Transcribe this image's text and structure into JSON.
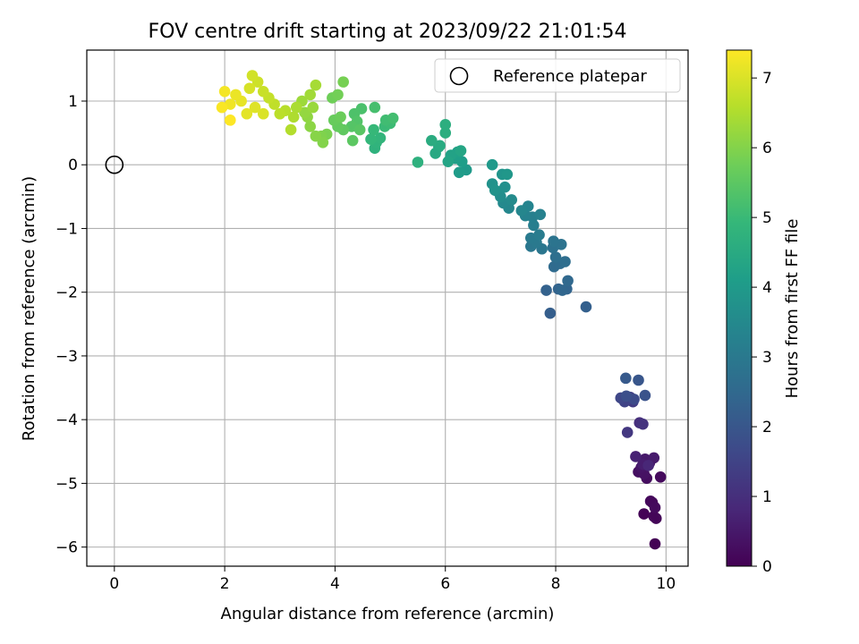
{
  "chart_data": {
    "type": "scatter",
    "title": "FOV centre drift starting at 2023/09/22 21:01:54",
    "xlabel": "Angular distance from reference (arcmin)",
    "ylabel": "Rotation from reference (arcmin)",
    "xlim": [
      -0.5,
      10.4
    ],
    "ylim": [
      -6.3,
      1.8
    ],
    "x_ticks": [
      0,
      2,
      4,
      6,
      8,
      10
    ],
    "y_ticks": [
      1,
      0,
      -1,
      -2,
      -3,
      -4,
      -5,
      -6
    ],
    "grid": true,
    "legend": {
      "position": "top-right",
      "label": "Reference platepar"
    },
    "reference_point": {
      "x": 0,
      "y": 0
    },
    "colorbar": {
      "label": "Hours from first FF file",
      "range": [
        0,
        7.4
      ],
      "ticks": [
        0,
        1,
        2,
        3,
        4,
        5,
        6,
        7
      ],
      "colormap": [
        "#440154",
        "#482878",
        "#3e4989",
        "#31688e",
        "#26828e",
        "#1f9e89",
        "#35b779",
        "#6ece58",
        "#b5de2b",
        "#fde725"
      ]
    },
    "points": [
      [
        9.8,
        -5.95,
        0.02
      ],
      [
        9.6,
        -5.48,
        0.05
      ],
      [
        9.82,
        -5.55,
        0.08
      ],
      [
        9.78,
        -5.52,
        0.1
      ],
      [
        9.75,
        -5.3,
        0.12
      ],
      [
        9.72,
        -5.28,
        0.15
      ],
      [
        9.8,
        -5.38,
        0.18
      ],
      [
        9.9,
        -4.9,
        0.2
      ],
      [
        9.65,
        -4.92,
        0.25
      ],
      [
        9.5,
        -4.82,
        0.3
      ],
      [
        9.6,
        -4.85,
        0.35
      ],
      [
        9.55,
        -4.75,
        0.4
      ],
      [
        9.7,
        -4.68,
        0.45
      ],
      [
        9.62,
        -4.62,
        0.5
      ],
      [
        9.78,
        -4.6,
        0.55
      ],
      [
        9.58,
        -4.7,
        0.6
      ],
      [
        9.45,
        -4.58,
        0.7
      ],
      [
        9.68,
        -4.72,
        0.8
      ],
      [
        9.52,
        -4.05,
        1.0
      ],
      [
        9.58,
        -4.07,
        1.1
      ],
      [
        9.3,
        -4.2,
        1.2
      ],
      [
        9.4,
        -3.72,
        1.3
      ],
      [
        9.35,
        -3.65,
        1.4
      ],
      [
        9.25,
        -3.72,
        1.5
      ],
      [
        9.18,
        -3.66,
        1.6
      ],
      [
        9.42,
        -3.68,
        1.7
      ],
      [
        9.28,
        -3.63,
        1.8
      ],
      [
        9.62,
        -3.62,
        1.9
      ],
      [
        9.5,
        -3.38,
        2.0
      ],
      [
        9.27,
        -3.35,
        2.1
      ],
      [
        7.9,
        -2.33,
        2.2
      ],
      [
        8.55,
        -2.23,
        2.25
      ],
      [
        7.83,
        -1.97,
        2.3
      ],
      [
        8.05,
        -1.95,
        2.35
      ],
      [
        8.2,
        -1.95,
        2.4
      ],
      [
        8.12,
        -1.97,
        2.45
      ],
      [
        8.22,
        -1.82,
        2.5
      ],
      [
        7.97,
        -1.6,
        2.55
      ],
      [
        8.08,
        -1.55,
        2.6
      ],
      [
        8.17,
        -1.52,
        2.65
      ],
      [
        8.0,
        -1.45,
        2.7
      ],
      [
        7.95,
        -1.3,
        2.75
      ],
      [
        8.1,
        -1.25,
        2.8
      ],
      [
        7.96,
        -1.2,
        2.85
      ],
      [
        7.75,
        -1.32,
        2.9
      ],
      [
        7.55,
        -1.28,
        2.95
      ],
      [
        7.65,
        -1.22,
        3.0
      ],
      [
        7.55,
        -1.15,
        3.05
      ],
      [
        7.7,
        -1.1,
        3.1
      ],
      [
        7.6,
        -0.95,
        3.15
      ],
      [
        7.58,
        -0.82,
        3.2
      ],
      [
        7.72,
        -0.78,
        3.25
      ],
      [
        7.45,
        -0.8,
        3.3
      ],
      [
        7.5,
        -0.65,
        3.35
      ],
      [
        7.38,
        -0.72,
        3.4
      ],
      [
        7.15,
        -0.68,
        3.45
      ],
      [
        7.05,
        -0.6,
        3.5
      ],
      [
        7.2,
        -0.55,
        3.55
      ],
      [
        7.0,
        -0.5,
        3.6
      ],
      [
        6.95,
        -0.42,
        3.65
      ],
      [
        7.08,
        -0.35,
        3.7
      ],
      [
        6.85,
        -0.3,
        3.75
      ],
      [
        6.9,
        -0.4,
        3.8
      ],
      [
        7.03,
        -0.15,
        3.85
      ],
      [
        7.12,
        -0.15,
        3.9
      ],
      [
        6.85,
        0.0,
        3.95
      ],
      [
        6.38,
        -0.08,
        4.0
      ],
      [
        6.25,
        -0.12,
        4.05
      ],
      [
        6.3,
        0.05,
        4.1
      ],
      [
        6.18,
        0.1,
        4.15
      ],
      [
        6.22,
        0.2,
        4.2
      ],
      [
        6.1,
        0.15,
        4.25
      ],
      [
        6.05,
        0.05,
        4.3
      ],
      [
        6.28,
        0.22,
        4.35
      ],
      [
        5.88,
        0.28,
        4.4
      ],
      [
        5.82,
        0.18,
        4.45
      ],
      [
        5.9,
        0.3,
        4.5
      ],
      [
        5.75,
        0.38,
        4.55
      ],
      [
        6.0,
        0.5,
        4.6
      ],
      [
        6.0,
        0.63,
        4.65
      ],
      [
        5.5,
        0.04,
        4.7
      ],
      [
        4.72,
        0.26,
        4.75
      ],
      [
        4.75,
        0.35,
        4.8
      ],
      [
        4.82,
        0.42,
        4.85
      ],
      [
        4.65,
        0.4,
        4.9
      ],
      [
        4.7,
        0.55,
        4.95
      ],
      [
        4.9,
        0.6,
        5.0
      ],
      [
        5.0,
        0.65,
        5.05
      ],
      [
        4.92,
        0.7,
        5.1
      ],
      [
        5.05,
        0.73,
        5.15
      ],
      [
        4.72,
        0.9,
        5.2
      ],
      [
        4.48,
        0.88,
        5.25
      ],
      [
        4.35,
        0.8,
        5.3
      ],
      [
        4.4,
        0.68,
        5.35
      ],
      [
        4.3,
        0.6,
        5.4
      ],
      [
        4.45,
        0.55,
        5.45
      ],
      [
        4.32,
        0.38,
        5.5
      ],
      [
        4.15,
        0.55,
        5.55
      ],
      [
        4.05,
        0.6,
        5.6
      ],
      [
        3.98,
        0.7,
        5.65
      ],
      [
        4.1,
        0.75,
        5.7
      ],
      [
        3.95,
        1.05,
        5.75
      ],
      [
        4.05,
        1.1,
        5.8
      ],
      [
        4.15,
        1.3,
        5.85
      ],
      [
        3.85,
        0.48,
        5.9
      ],
      [
        3.75,
        0.45,
        5.95
      ],
      [
        3.78,
        0.35,
        6.0
      ],
      [
        3.65,
        0.45,
        6.05
      ],
      [
        3.55,
        0.6,
        6.1
      ],
      [
        3.5,
        0.75,
        6.15
      ],
      [
        3.45,
        0.82,
        6.2
      ],
      [
        3.6,
        0.9,
        6.25
      ],
      [
        3.4,
        1.0,
        6.3
      ],
      [
        3.55,
        1.1,
        6.35
      ],
      [
        3.65,
        1.25,
        6.4
      ],
      [
        3.3,
        0.9,
        6.45
      ],
      [
        3.25,
        0.75,
        6.5
      ],
      [
        3.2,
        0.55,
        6.55
      ],
      [
        3.1,
        0.85,
        6.6
      ],
      [
        3.0,
        0.8,
        6.65
      ],
      [
        2.9,
        0.95,
        6.7
      ],
      [
        2.8,
        1.05,
        6.75
      ],
      [
        2.7,
        1.15,
        6.8
      ],
      [
        2.6,
        1.3,
        6.85
      ],
      [
        2.5,
        1.4,
        6.9
      ],
      [
        2.45,
        1.2,
        6.95
      ],
      [
        2.7,
        0.8,
        7.0
      ],
      [
        2.55,
        0.9,
        7.05
      ],
      [
        2.4,
        0.8,
        7.1
      ],
      [
        2.3,
        1.0,
        7.15
      ],
      [
        2.2,
        1.1,
        7.2
      ],
      [
        2.1,
        0.95,
        7.25
      ],
      [
        2.0,
        1.15,
        7.3
      ],
      [
        1.95,
        0.9,
        7.35
      ],
      [
        2.1,
        0.7,
        7.4
      ]
    ]
  }
}
